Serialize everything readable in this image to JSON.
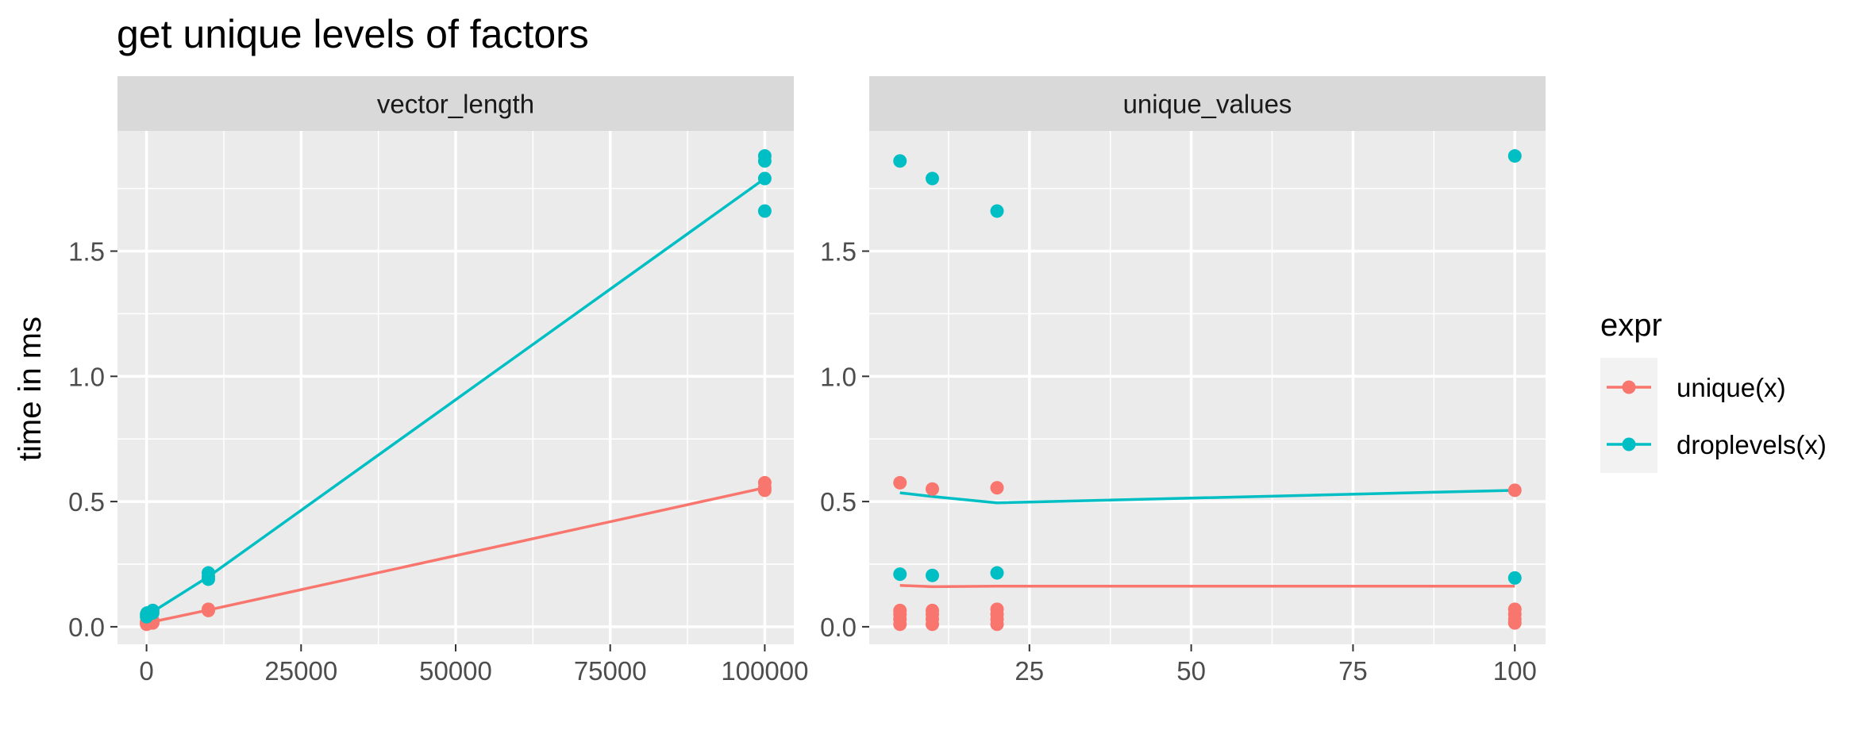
{
  "chart_data": {
    "type": "scatter",
    "title": "get unique levels of factors",
    "ylabel": "time in ms",
    "ylim": [
      -0.07,
      1.98
    ],
    "y_ticks": [
      0.0,
      0.5,
      1.0,
      1.5
    ],
    "y_tick_labels": [
      "0.0",
      "0.5",
      "1.0",
      "1.5"
    ],
    "grid": true,
    "legend": {
      "title": "expr",
      "position": "right",
      "entries": [
        {
          "label": "unique(x)",
          "color": "#F8766D"
        },
        {
          "label": "droplevels(x)",
          "color": "#00BFC4"
        }
      ]
    },
    "panels": [
      {
        "strip": "vector_length",
        "xlim": [
          -4700,
          104700
        ],
        "x_ticks": [
          0,
          25000,
          50000,
          75000,
          100000
        ],
        "x_tick_labels": [
          "0",
          "25000",
          "50000",
          "75000",
          "100000"
        ],
        "series": [
          {
            "name": "unique(x)",
            "color": "#F8766D",
            "points": [
              [
                10,
                0.01
              ],
              [
                10,
                0.015
              ],
              [
                10,
                0.02
              ],
              [
                100,
                0.015
              ],
              [
                100,
                0.02
              ],
              [
                1000,
                0.015
              ],
              [
                1000,
                0.02
              ],
              [
                1000,
                0.025
              ],
              [
                10000,
                0.065
              ],
              [
                10000,
                0.07
              ],
              [
                100000,
                0.545
              ],
              [
                100000,
                0.555
              ],
              [
                100000,
                0.575
              ]
            ],
            "line": [
              [
                10,
                0.015
              ],
              [
                100,
                0.017
              ],
              [
                1000,
                0.02
              ],
              [
                10000,
                0.067
              ],
              [
                100000,
                0.555
              ]
            ]
          },
          {
            "name": "droplevels(x)",
            "color": "#00BFC4",
            "points": [
              [
                10,
                0.04
              ],
              [
                10,
                0.05
              ],
              [
                100,
                0.045
              ],
              [
                100,
                0.055
              ],
              [
                1000,
                0.055
              ],
              [
                1000,
                0.065
              ],
              [
                10000,
                0.19
              ],
              [
                10000,
                0.2
              ],
              [
                10000,
                0.215
              ],
              [
                100000,
                1.66
              ],
              [
                100000,
                1.79
              ],
              [
                100000,
                1.86
              ],
              [
                100000,
                1.88
              ]
            ],
            "line": [
              [
                10,
                0.045
              ],
              [
                100,
                0.05
              ],
              [
                1000,
                0.06
              ],
              [
                10000,
                0.2
              ],
              [
                100000,
                1.79
              ]
            ]
          }
        ]
      },
      {
        "strip": "unique_values",
        "xlim": [
          0.25,
          104.75
        ],
        "x_ticks": [
          25,
          50,
          75,
          100
        ],
        "x_tick_labels": [
          "25",
          "50",
          "75",
          "100"
        ],
        "series": [
          {
            "name": "unique(x)",
            "color": "#F8766D",
            "points": [
              [
                5,
                0.01
              ],
              [
                5,
                0.03
              ],
              [
                5,
                0.05
              ],
              [
                5,
                0.065
              ],
              [
                5,
                0.575
              ],
              [
                10,
                0.01
              ],
              [
                10,
                0.03
              ],
              [
                10,
                0.05
              ],
              [
                10,
                0.065
              ],
              [
                10,
                0.55
              ],
              [
                20,
                0.01
              ],
              [
                20,
                0.03
              ],
              [
                20,
                0.05
              ],
              [
                20,
                0.07
              ],
              [
                20,
                0.555
              ],
              [
                100,
                0.015
              ],
              [
                100,
                0.03
              ],
              [
                100,
                0.05
              ],
              [
                100,
                0.07
              ],
              [
                100,
                0.545
              ]
            ],
            "line": [
              [
                5,
                0.165
              ],
              [
                10,
                0.16
              ],
              [
                20,
                0.162
              ],
              [
                100,
                0.162
              ]
            ]
          },
          {
            "name": "droplevels(x)",
            "color": "#00BFC4",
            "points": [
              [
                5,
                0.21
              ],
              [
                5,
                1.86
              ],
              [
                10,
                0.205
              ],
              [
                10,
                1.79
              ],
              [
                20,
                0.215
              ],
              [
                20,
                1.66
              ],
              [
                100,
                0.195
              ],
              [
                100,
                1.88
              ]
            ],
            "line": [
              [
                5,
                0.535
              ],
              [
                10,
                0.52
              ],
              [
                20,
                0.495
              ],
              [
                100,
                0.545
              ]
            ]
          }
        ]
      }
    ]
  }
}
